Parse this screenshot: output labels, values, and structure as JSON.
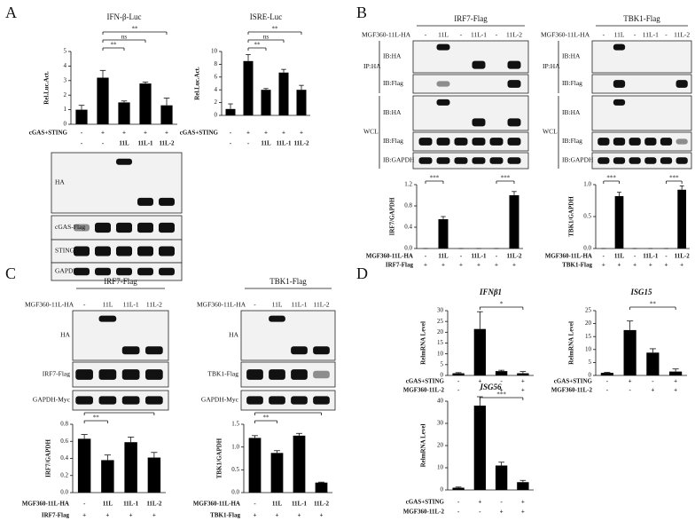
{
  "panels": [
    "A",
    "B",
    "C",
    "D"
  ],
  "chart_data": [
    {
      "type": "bar",
      "title": "IFN-β-Luc",
      "ylabel": "Rel.Luc.Act.",
      "ylim": [
        0,
        5
      ],
      "yticks": [
        0,
        1,
        2,
        3,
        4,
        5
      ],
      "color": "#000000",
      "values": [
        1.0,
        3.2,
        1.5,
        2.8,
        1.3
      ],
      "errors": [
        0.3,
        0.5,
        0.1,
        0.1,
        0.5
      ],
      "rows": [
        {
          "name": "cGAS+STING",
          "labels": [
            "-",
            "+",
            "+",
            "+",
            "+"
          ]
        },
        {
          "labels": [
            "-",
            "-",
            "11L",
            "11L-1",
            "11L-2"
          ]
        }
      ],
      "annotations": [
        {
          "text": "**",
          "from": 1,
          "to": 2
        },
        {
          "text": "ns",
          "from": 1,
          "to": 3
        },
        {
          "text": "**",
          "from": 1,
          "to": 4
        }
      ]
    },
    {
      "type": "bar",
      "title": "ISRE-Luc",
      "ylabel": "Rel.Luc.Act.",
      "ylim": [
        0,
        10
      ],
      "yticks": [
        0,
        2,
        4,
        6,
        8,
        10
      ],
      "color": "#000000",
      "values": [
        1.0,
        8.5,
        4.0,
        6.7,
        4.0
      ],
      "errors": [
        0.8,
        1.0,
        0.2,
        0.5,
        0.7
      ],
      "rows": [
        {
          "name": "cGAS+STING",
          "labels": [
            "-",
            "+",
            "+",
            "+",
            "+"
          ]
        },
        {
          "labels": [
            "-",
            "-",
            "11L",
            "11L-1",
            "11L-2"
          ]
        }
      ],
      "annotations": [
        {
          "text": "**",
          "from": 1,
          "to": 2
        },
        {
          "text": "ns",
          "from": 1,
          "to": 3
        },
        {
          "text": "**",
          "from": 1,
          "to": 4
        }
      ]
    },
    {
      "type": "bar",
      "ylabel": "IRF7/GAPDH",
      "ylim": [
        0,
        1.2
      ],
      "yticks": [
        {
          "value": 0,
          "label": "0.0"
        },
        0.4,
        0.8,
        1.2
      ],
      "color": "#000000",
      "values": [
        0,
        0.55,
        0,
        0,
        0,
        1.0
      ],
      "errors": [
        0,
        0.05,
        0,
        0,
        0,
        0.07
      ],
      "rows": [
        {
          "name": "MGF360-11L-HA",
          "labels": [
            "-",
            "11L",
            "-",
            "11L-1",
            "-",
            "11L-2"
          ]
        },
        {
          "name": "IRF7-Flag",
          "labels": [
            "+",
            "+",
            "+",
            "+",
            "+",
            "+"
          ]
        }
      ],
      "annotations": [
        {
          "text": "***",
          "from": 0,
          "to": 1
        },
        {
          "text": "***",
          "from": 4,
          "to": 5
        }
      ]
    },
    {
      "type": "bar",
      "ylabel": "TBK1/GAPDH",
      "ylim": [
        0,
        1.0
      ],
      "yticks": [
        {
          "value": 0,
          "label": "0.0"
        },
        0.5,
        {
          "value": 1.0,
          "label": "1.0"
        }
      ],
      "color": "#000000",
      "values": [
        0,
        0.82,
        0,
        0,
        0,
        0.92
      ],
      "errors": [
        0,
        0.06,
        0,
        0,
        0,
        0.06
      ],
      "rows": [
        {
          "name": "MGF360-11L-HA",
          "labels": [
            "-",
            "11L",
            "-",
            "11L-1",
            "-",
            "11L-2"
          ]
        },
        {
          "name": "TBK1-Flag",
          "labels": [
            "+",
            "+",
            "+",
            "+",
            "+",
            "+"
          ]
        }
      ],
      "annotations": [
        {
          "text": "***",
          "from": 0,
          "to": 1
        },
        {
          "text": "***",
          "from": 4,
          "to": 5
        }
      ]
    },
    {
      "type": "bar",
      "ylabel": "IRF7/GAPDH",
      "ylim": [
        0,
        0.8
      ],
      "yticks": [
        {
          "value": 0,
          "label": "0.0"
        },
        0.2,
        0.4,
        0.6,
        0.8
      ],
      "color": "#000000",
      "values": [
        0.63,
        0.38,
        0.59,
        0.41
      ],
      "errors": [
        0.05,
        0.06,
        0.06,
        0.06
      ],
      "rows": [
        {
          "name": "MGF360-11L-HA",
          "labels": [
            "-",
            "11L",
            "11L-1",
            "11L-2"
          ]
        },
        {
          "name": "IRF7-Flag",
          "labels": [
            "+",
            "+",
            "+",
            "+"
          ]
        }
      ],
      "annotations": [
        {
          "text": "**",
          "from": 0,
          "to": 1
        },
        {
          "text": "*",
          "from": 0,
          "to": 3
        }
      ]
    },
    {
      "type": "bar",
      "ylabel": "TBK1/GAPDH",
      "ylim": [
        0,
        1.5
      ],
      "yticks": [
        {
          "value": 0,
          "label": "0.0"
        },
        0.5,
        {
          "value": 1.0,
          "label": "1.0"
        },
        1.5
      ],
      "color": "#000000",
      "values": [
        1.2,
        0.87,
        1.25,
        0.22
      ],
      "errors": [
        0.05,
        0.05,
        0.05,
        0.01
      ],
      "rows": [
        {
          "name": "MGF360-11L-HA",
          "labels": [
            "-",
            "11L",
            "11L-1",
            "11L-2"
          ]
        },
        {
          "name": "TBK1-Flag",
          "labels": [
            "+",
            "+",
            "+",
            "+"
          ]
        }
      ],
      "annotations": [
        {
          "text": "**",
          "from": 0,
          "to": 1
        },
        {
          "text": "***",
          "from": 0,
          "to": 3
        }
      ]
    },
    {
      "type": "bar",
      "title": "IFNβ1",
      "ylabel": "RelmRNA Level",
      "ylim": [
        0,
        30
      ],
      "yticks": [
        0,
        5,
        10,
        15,
        20,
        25,
        30
      ],
      "color": "#000000",
      "values": [
        1.0,
        21.5,
        2.0,
        1.0
      ],
      "errors": [
        0.3,
        8.0,
        0.4,
        0.8
      ],
      "rows": [
        {
          "name": "cGAS+STING",
          "labels": [
            "-",
            "+",
            "-",
            "+"
          ]
        },
        {
          "name": "MGF360-11L-2",
          "labels": [
            "-",
            "-",
            "+",
            "+"
          ]
        }
      ],
      "annotations": [
        {
          "text": "*",
          "from": 1,
          "to": 3
        }
      ]
    },
    {
      "type": "bar",
      "title": "ISG15",
      "ylabel": "RelmRNA Level",
      "ylim": [
        0,
        25
      ],
      "yticks": [
        0,
        5,
        10,
        15,
        20,
        25
      ],
      "color": "#000000",
      "values": [
        1.0,
        17.5,
        8.8,
        1.5
      ],
      "errors": [
        0.2,
        3.5,
        1.5,
        1.0
      ],
      "rows": [
        {
          "name": "cGAS+STING",
          "labels": [
            "-",
            "+",
            "-",
            "+"
          ]
        },
        {
          "name": "MGF360-11L-2",
          "labels": [
            "-",
            "-",
            "+",
            "+"
          ]
        }
      ],
      "annotations": [
        {
          "text": "**",
          "from": 1,
          "to": 3
        }
      ]
    },
    {
      "type": "bar",
      "title": "ISG56",
      "ylabel": "RelmRNA Level",
      "ylim": [
        0,
        40
      ],
      "yticks": [
        0,
        10,
        20,
        30,
        40
      ],
      "color": "#000000",
      "values": [
        1.0,
        38,
        11,
        3.5
      ],
      "errors": [
        0.3,
        4,
        1.5,
        0.8
      ],
      "rows": [
        {
          "name": "cGAS+STING",
          "labels": [
            "-",
            "+",
            "-",
            "+"
          ]
        },
        {
          "name": "MGF360-11L-2",
          "labels": [
            "-",
            "-",
            "+",
            "+"
          ]
        }
      ],
      "annotations": [
        {
          "text": "***",
          "from": 1,
          "to": 3
        }
      ]
    }
  ],
  "blots": [
    {
      "groups": [
        {
          "rows": [
            "HA",
            "cGAS-Flag",
            "STING-Flag",
            "GAPDH"
          ]
        }
      ]
    },
    {
      "header": "IRF7-Flag",
      "lane_title": "MGF360-11L-HA",
      "lanes": [
        "-",
        "11L",
        "-",
        "11L-1",
        "-",
        "11L-2"
      ],
      "groups": [
        {
          "name": "IP:HA",
          "rows": [
            "IB:HA",
            "IB:Flag"
          ]
        },
        {
          "name": "WCL",
          "rows": [
            "IB:HA",
            "IB:Flag",
            "IB:GAPDH"
          ]
        }
      ]
    },
    {
      "header": "TBK1-Flag",
      "lane_title": "MGF360-11L-HA",
      "lanes": [
        "-",
        "11L",
        "-",
        "11L-1",
        "-",
        "11L-2"
      ],
      "groups": [
        {
          "name": "IP:HA",
          "rows": [
            "IB:HA",
            "IB:Flag"
          ]
        },
        {
          "name": "WCL",
          "rows": [
            "IB:HA",
            "IB:Flag",
            "IB:GAPDH"
          ]
        }
      ]
    },
    {
      "header": "IRF7-Flag",
      "lane_title": "MGF360-11L-HA",
      "lanes": [
        "-",
        "11L",
        "11L-1",
        "11L-2"
      ],
      "groups": [
        {
          "rows": [
            "HA",
            "IRF7-Flag",
            "GAPDH-Myc"
          ]
        }
      ]
    },
    {
      "header": "TBK1-Flag",
      "lane_title": "MGF360-11L-HA",
      "lanes": [
        "-",
        "11L",
        "11L-1",
        "11L-2"
      ],
      "groups": [
        {
          "rows": [
            "HA",
            "TBK1-Flag",
            "GAPDH-Myc"
          ]
        }
      ]
    }
  ]
}
